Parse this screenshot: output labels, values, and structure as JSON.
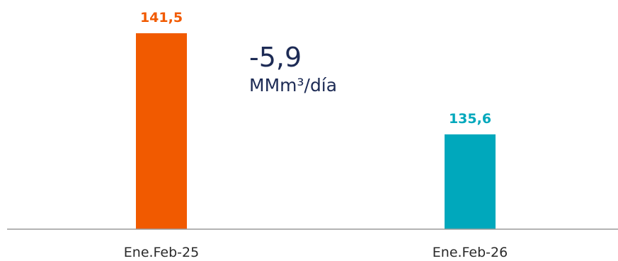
{
  "chart_data": {
    "type": "bar",
    "categories": [
      "Ene.Feb-25",
      "Ene.Feb-26"
    ],
    "values": [
      141.5,
      135.6
    ],
    "value_labels": [
      "141,5",
      "135,6"
    ],
    "colors": [
      "#f15a00",
      "#00a8bc"
    ],
    "ylim": [
      0,
      160
    ],
    "grid": false,
    "annotation": {
      "value": "-5,9",
      "unit": "MMm³/día",
      "color": "#1d2b55"
    }
  }
}
